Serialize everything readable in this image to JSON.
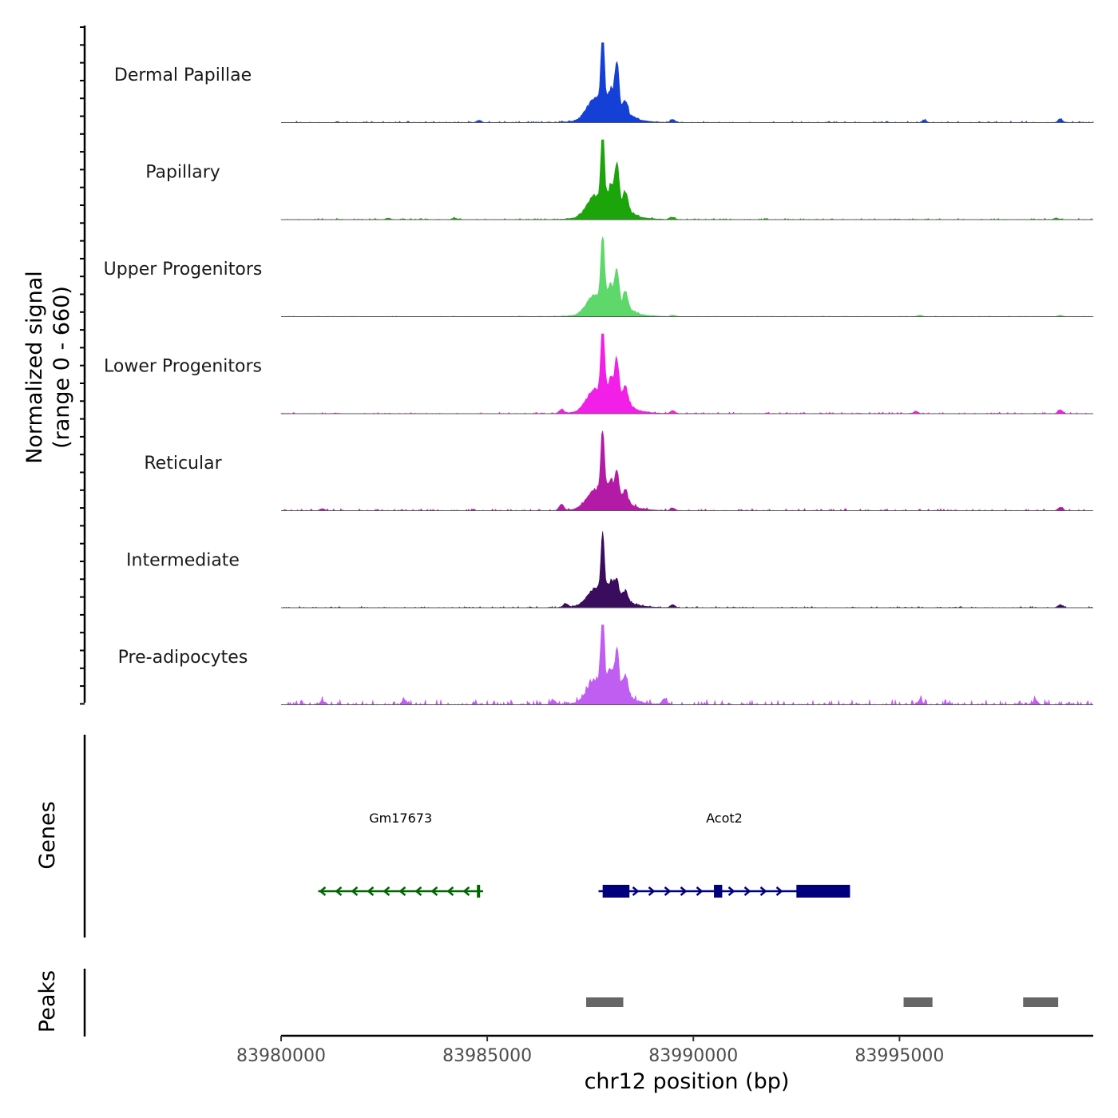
{
  "chart_data": {
    "type": "area",
    "title": "",
    "region": {
      "chromosome": "chr12",
      "start": 83980000,
      "end": 83999700
    },
    "xlabel": "chr12 position (bp)",
    "x_ticks": [
      83980000,
      83985000,
      83990000,
      83995000
    ],
    "x_tick_labels": [
      "83980000",
      "83985000",
      "83990000",
      "83995000"
    ],
    "ylabel": {
      "line1": "Normalized signal",
      "line2": "(range 0 - 660)"
    },
    "ylim": [
      0,
      660
    ],
    "peak_centers": [
      {
        "x": 83987600,
        "width": 250,
        "height": 0.22
      },
      {
        "x": 83987800,
        "width": 60,
        "height": 1.0
      },
      {
        "x": 83988000,
        "width": 110,
        "height": 0.3
      },
      {
        "x": 83988150,
        "width": 70,
        "height": 0.55
      },
      {
        "x": 83988350,
        "width": 90,
        "height": 0.3
      },
      {
        "x": 83988000,
        "width": 700,
        "height": 0.1
      }
    ],
    "series": [
      {
        "name": "Dermal Papillae",
        "color": "#1540d6",
        "scale": 0.95,
        "peak2": 0.62,
        "peak3": 0.18,
        "background": 0.02,
        "small_peaks": [
          [
            83984800,
            0.03
          ],
          [
            83989500,
            0.04
          ],
          [
            83995600,
            0.03
          ],
          [
            83998900,
            0.04
          ]
        ]
      },
      {
        "name": "Papillary",
        "color": "#1ca50b",
        "scale": 0.94,
        "peak2": 0.6,
        "peak3": 0.28,
        "background": 0.02,
        "small_peaks": [
          [
            83982600,
            0.02
          ],
          [
            83984200,
            0.02
          ],
          [
            83989500,
            0.03
          ],
          [
            83998800,
            0.02
          ]
        ]
      },
      {
        "name": "Upper Progenitors",
        "color": "#5ed86a",
        "scale": 0.88,
        "peak2": 0.5,
        "peak3": 0.25,
        "background": 0.01,
        "small_peaks": [
          [
            83989500,
            0.02
          ],
          [
            83995500,
            0.02
          ],
          [
            83998900,
            0.02
          ]
        ]
      },
      {
        "name": "Lower Progenitors",
        "color": "#f11fe8",
        "scale": 0.98,
        "peak2": 0.55,
        "peak3": 0.25,
        "background": 0.02,
        "small_peaks": [
          [
            83986800,
            0.05
          ],
          [
            83989500,
            0.04
          ],
          [
            83995400,
            0.03
          ],
          [
            83998900,
            0.05
          ]
        ]
      },
      {
        "name": "Reticular",
        "color": "#b31ba6",
        "scale": 0.85,
        "peak2": 0.4,
        "peak3": 0.2,
        "background": 0.03,
        "small_peaks": [
          [
            83981000,
            0.03
          ],
          [
            83986800,
            0.09
          ],
          [
            83989500,
            0.04
          ],
          [
            83998900,
            0.05
          ]
        ]
      },
      {
        "name": "Intermediate",
        "color": "#3a0c5e",
        "scale": 0.75,
        "peak2": 0.3,
        "peak3": 0.18,
        "background": 0.02,
        "small_peaks": [
          [
            83986900,
            0.06
          ],
          [
            83989500,
            0.05
          ],
          [
            83998900,
            0.05
          ]
        ]
      },
      {
        "name": "Pre-adipocytes",
        "color": "#c05ef2",
        "scale": 0.95,
        "peak2": 0.55,
        "peak3": 0.3,
        "background": 0.07,
        "small_peaks": [
          [
            83981000,
            0.05
          ],
          [
            83983000,
            0.06
          ],
          [
            83986600,
            0.06
          ],
          [
            83989300,
            0.08
          ],
          [
            83995500,
            0.06
          ],
          [
            83998300,
            0.06
          ]
        ]
      }
    ],
    "genes": {
      "title": "Genes",
      "items": [
        {
          "name": "Gm17673",
          "strand": "-",
          "color": "#006400",
          "start": 83980900,
          "end": 83984900,
          "exons": [
            [
              83984750,
              83984820
            ]
          ]
        },
        {
          "name": "Acot2",
          "strand": "+",
          "color": "#00007f",
          "start": 83987700,
          "end": 83993800,
          "exons": [
            [
              83987800,
              83988450
            ],
            [
              83990500,
              83990700
            ],
            [
              83992500,
              83993800
            ]
          ]
        }
      ]
    },
    "peaks": {
      "title": "Peaks",
      "color": "#666666",
      "regions": [
        [
          83987400,
          83988300
        ],
        [
          83995100,
          83995800
        ],
        [
          83998000,
          83998850
        ]
      ]
    }
  }
}
